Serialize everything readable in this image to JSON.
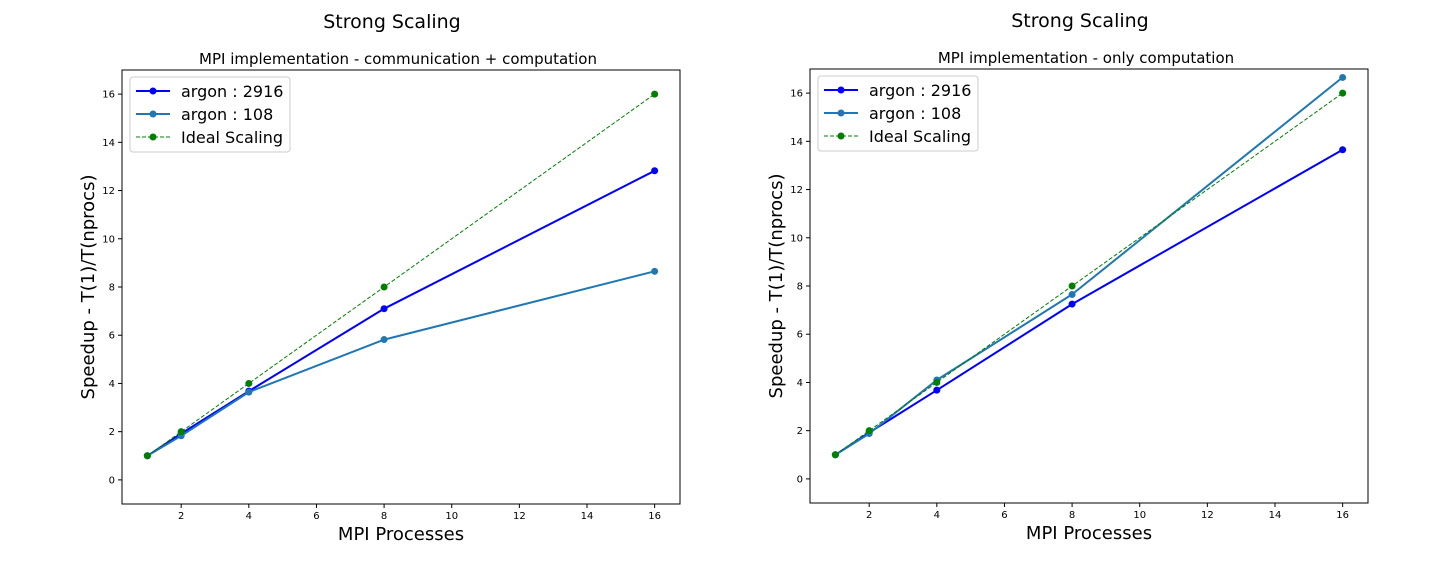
{
  "colors": {
    "argon_2916": "#0000ff",
    "argon_108": "#1f77b4",
    "ideal": "#008000"
  },
  "chart_data": [
    {
      "type": "line",
      "suptitle": "Strong Scaling",
      "title": "MPI implementation - communication + computation",
      "xlabel": "MPI Processes",
      "ylabel": "Speedup - T(1)/T(nprocs)",
      "xlim": [
        0.25,
        16.75
      ],
      "ylim": [
        -1,
        17
      ],
      "xticks": [
        2,
        4,
        6,
        8,
        10,
        12,
        14,
        16
      ],
      "yticks": [
        0,
        2,
        4,
        6,
        8,
        10,
        12,
        14,
        16
      ],
      "grid": false,
      "legend_position": "top-left",
      "x": [
        1,
        2,
        4,
        8,
        16
      ],
      "series": [
        {
          "name": "argon : 2916",
          "values": [
            1.0,
            1.92,
            3.68,
            7.1,
            12.82
          ],
          "color": "#0000ff",
          "style": "solid",
          "marker": "circle"
        },
        {
          "name": "argon : 108",
          "values": [
            1.0,
            1.83,
            3.64,
            5.82,
            8.65
          ],
          "color": "#1f77b4",
          "style": "solid",
          "marker": "circle"
        },
        {
          "name": "Ideal Scaling",
          "values": [
            1,
            2,
            4,
            8,
            16
          ],
          "color": "#008000",
          "style": "dashed",
          "marker": "circle"
        }
      ]
    },
    {
      "type": "line",
      "suptitle": "Strong Scaling",
      "title": "MPI implementation - only computation",
      "xlabel": "MPI Processes",
      "ylabel": "Speedup - T(1)/T(nprocs)",
      "xlim": [
        0.25,
        16.75
      ],
      "ylim": [
        -1,
        17
      ],
      "xticks": [
        2,
        4,
        6,
        8,
        10,
        12,
        14,
        16
      ],
      "yticks": [
        0,
        2,
        4,
        6,
        8,
        10,
        12,
        14,
        16
      ],
      "grid": false,
      "legend_position": "top-left",
      "x": [
        1,
        2,
        4,
        8,
        16
      ],
      "series": [
        {
          "name": "argon : 2916",
          "values": [
            1.0,
            1.92,
            3.68,
            7.25,
            13.65
          ],
          "color": "#0000ff",
          "style": "solid",
          "marker": "circle"
        },
        {
          "name": "argon : 108",
          "values": [
            1.0,
            1.88,
            4.1,
            7.65,
            16.65
          ],
          "color": "#1f77b4",
          "style": "solid",
          "marker": "circle"
        },
        {
          "name": "Ideal Scaling",
          "values": [
            1,
            2,
            4,
            8,
            16
          ],
          "color": "#008000",
          "style": "dashed",
          "marker": "circle"
        }
      ]
    }
  ]
}
